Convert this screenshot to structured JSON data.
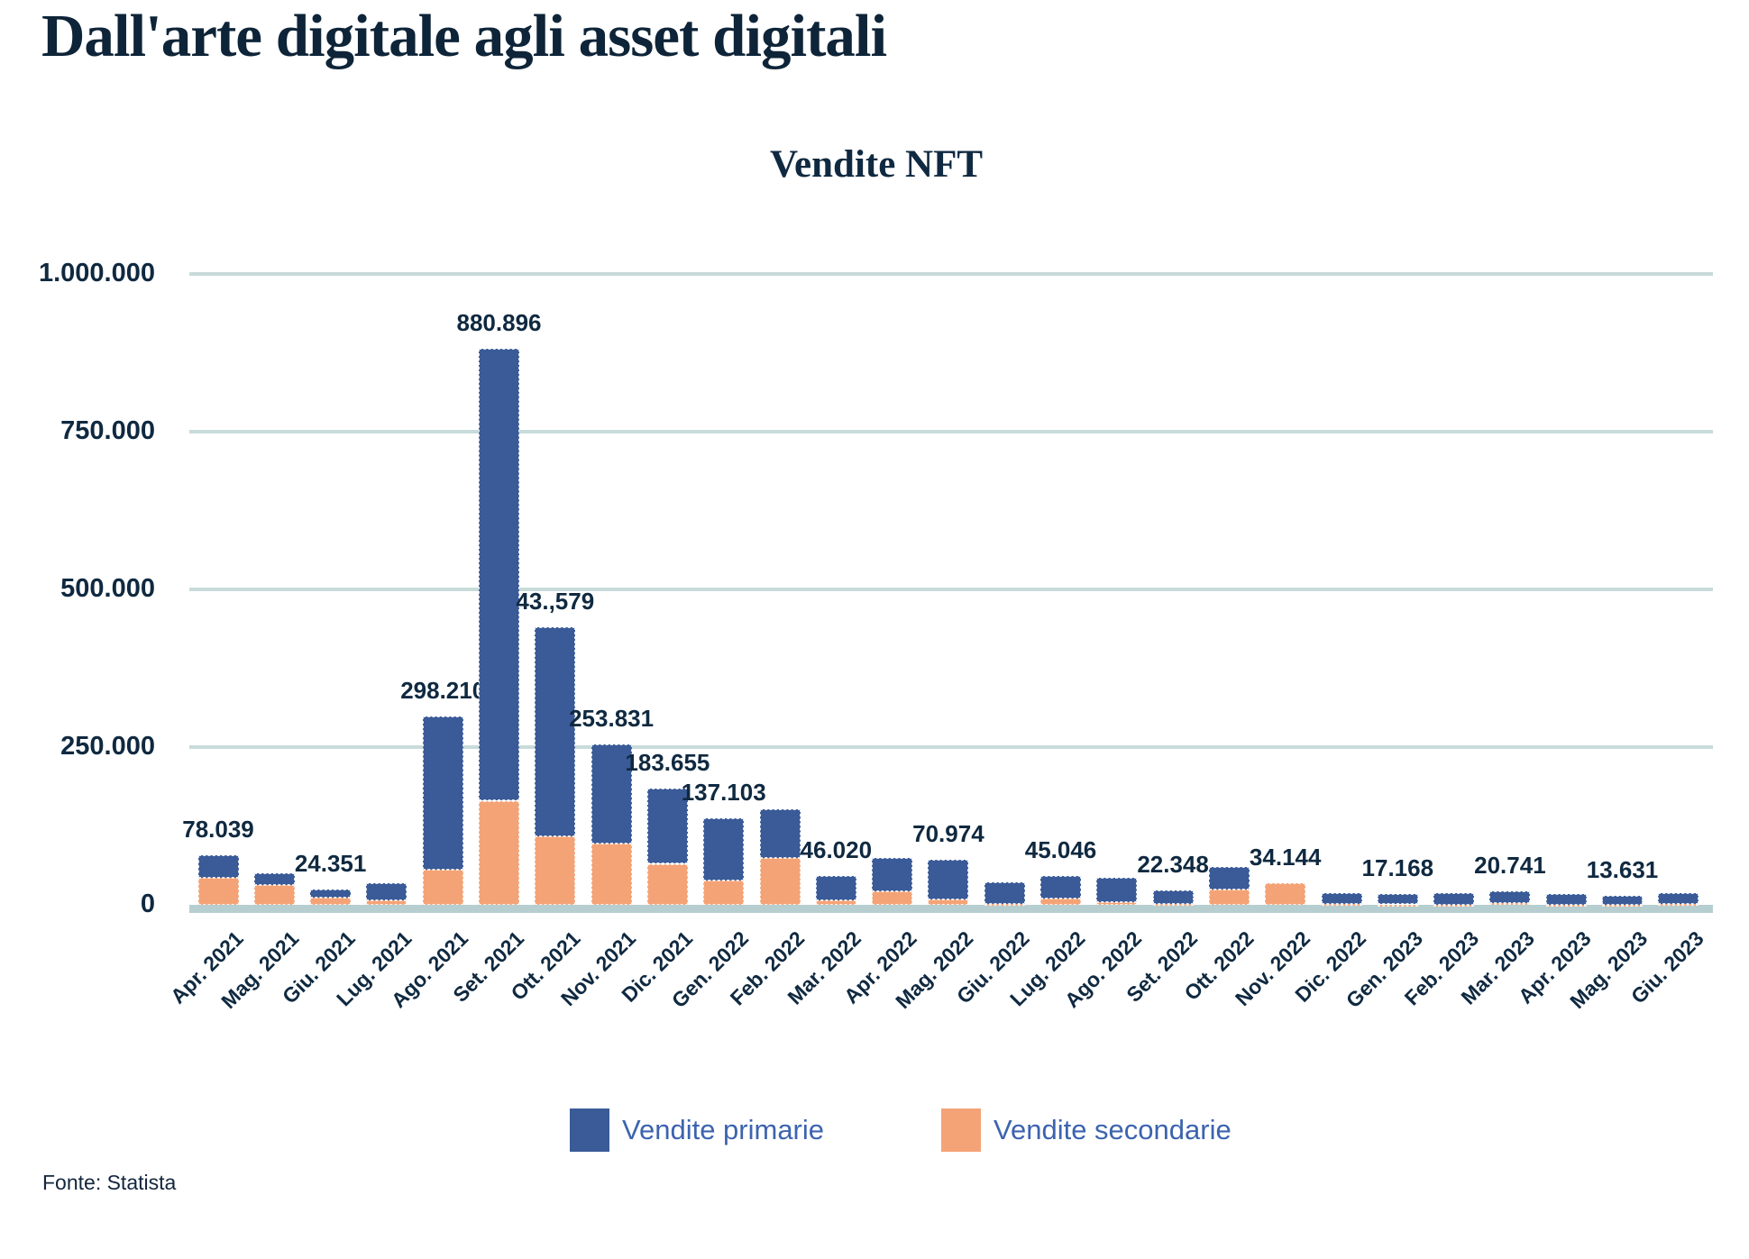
{
  "page": {
    "title": "Dall'arte digitale agli asset digitali",
    "source": "Fonte: Statista"
  },
  "chart": {
    "title": "Vendite NFT",
    "legend": [
      {
        "label": "Vendite primarie",
        "color": "#3a5b98"
      },
      {
        "label": "Vendite secondarie",
        "color": "#f4a377"
      }
    ]
  },
  "colors": {
    "text_navy": "#0f2940",
    "gridline": "#c8dbda",
    "baseline": "#b7ced0",
    "primary_bar": "#3a5b98",
    "secondary_bar": "#f4a377",
    "legend_text": "#3c64ae"
  },
  "chart_data": {
    "type": "bar",
    "stacked": true,
    "title": "Vendite NFT",
    "grid": true,
    "legend_position": "bottom",
    "ylim": [
      0,
      1000000
    ],
    "y_ticks": [
      {
        "label": "0",
        "value": 0
      },
      {
        "label": "250.000",
        "value": 250000
      },
      {
        "label": "500.000",
        "value": 500000
      },
      {
        "label": "750.000",
        "value": 750000
      },
      {
        "label": "1.000.000",
        "value": 1000000
      }
    ],
    "categories": [
      "Apr. 2021",
      "Mag. 2021",
      "Giu. 2021",
      "Lug. 2021",
      "Ago. 2021",
      "Set. 2021",
      "Ott. 2021",
      "Nov. 2021",
      "Dic. 2021",
      "Gen. 2022",
      "Feb. 2022",
      "Mar. 2022",
      "Apr. 2022",
      "Mag. 2022",
      "Giu. 2022",
      "Lug. 2022",
      "Ago. 2022",
      "Set. 2022",
      "Ott. 2022",
      "Nov. 2022",
      "Dic. 2022",
      "Gen. 2023",
      "Feb. 2023",
      "Mar. 2023",
      "Apr. 2023",
      "Mag. 2023",
      "Giu. 2023"
    ],
    "series": [
      {
        "name": "Vendite primarie",
        "color": "#3a5b98",
        "values": [
          35039,
          19000,
          12851,
          28000,
          242210,
          715896,
          332000,
          156831,
          118655,
          99103,
          78000,
          38520,
          54000,
          61974,
          34500,
          35046,
          39000,
          21348,
          36000,
          0,
          17000,
          16468,
          17300,
          17741,
          16000,
          13231,
          17500
        ]
      },
      {
        "name": "Vendite secondarie",
        "color": "#f4a377",
        "values": [
          43000,
          31000,
          11500,
          7000,
          56000,
          165000,
          108000,
          97000,
          65000,
          38000,
          74000,
          7500,
          21000,
          9000,
          1500,
          10000,
          4000,
          1000,
          24000,
          34144,
          1000,
          700,
          700,
          3000,
          500,
          400,
          1000
        ]
      }
    ],
    "bar_labels": [
      "78.039",
      null,
      "24.351",
      null,
      "298.210",
      "880.896",
      "43.,579",
      "253.831",
      "183.655",
      "137.103",
      null,
      "46.020",
      null,
      "70.974",
      null,
      "45.046",
      null,
      "22.348",
      null,
      "34.144",
      null,
      "17.168",
      null,
      "20.741",
      null,
      "13.631",
      null
    ]
  }
}
